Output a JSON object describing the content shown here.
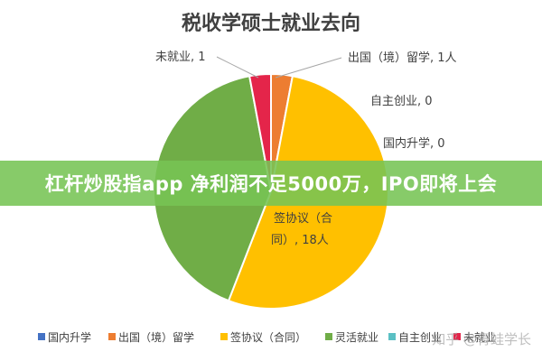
{
  "chart_data": {
    "type": "pie",
    "title": "税收学硕士就业去向",
    "categories": [
      "国内升学",
      "出国（境）留学",
      "签协议（合同）",
      "灵活就业",
      "自主创业",
      "未就业"
    ],
    "values": [
      0,
      1,
      18,
      14,
      0,
      1
    ],
    "colors": [
      "#4472c4",
      "#ed7d31",
      "#ffc000",
      "#70ad47",
      "#5bc0c4",
      "#e4254a"
    ],
    "data_labels": [
      "国内升学, 0",
      "出国（境）留学, 1人",
      "签协议（合",
      "同）, 18人",
      "自主创业, 0",
      "未就业, 1"
    ],
    "legend_position": "bottom"
  },
  "banner": {
    "text": "杠杆炒股指app 净利润不足5000万，IPO即将上会"
  },
  "watermark": {
    "text": "知乎 @青蛙学长"
  }
}
